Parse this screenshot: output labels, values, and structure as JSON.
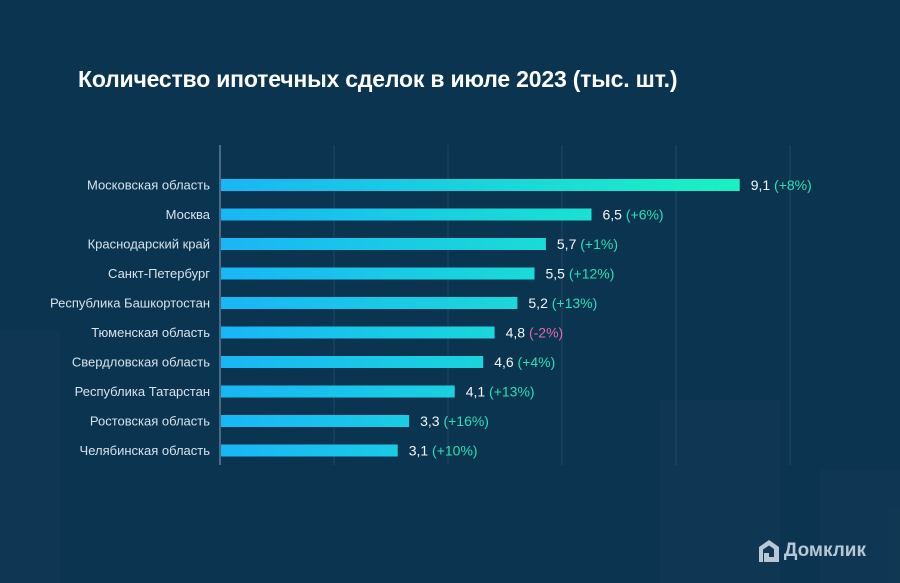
{
  "chart_data": {
    "type": "bar",
    "orientation": "horizontal",
    "title": "Количество ипотечных сделок в июле 2023 (тыс. шт.)",
    "xlabel": "",
    "ylabel": "",
    "xlim": [
      0,
      10
    ],
    "grid": true,
    "gridline_step": 2,
    "categories": [
      "Московская область",
      "Москва",
      "Краснодарский край",
      "Санкт-Петербург",
      "Республика Башкортостан",
      "Тюменская область",
      "Свердловская область",
      "Республика Татарстан",
      "Ростовская область",
      "Челябинская область"
    ],
    "values": [
      9.1,
      6.5,
      5.7,
      5.5,
      5.2,
      4.8,
      4.6,
      4.1,
      3.3,
      3.1
    ],
    "value_labels": [
      "9,1",
      "6,5",
      "5,7",
      "5,5",
      "5,2",
      "4,8",
      "4,6",
      "4,1",
      "3,3",
      "3,1"
    ],
    "changes": [
      "(+8%)",
      "(+6%)",
      "(+1%)",
      "(+12%)",
      "(+13%)",
      "(-2%)",
      "(+4%)",
      "(+13%)",
      "(+16%)",
      "(+10%)"
    ],
    "change_values_pct": [
      8,
      6,
      1,
      12,
      13,
      -2,
      4,
      13,
      16,
      10
    ],
    "colors": {
      "bar_start": "#19b6f6",
      "bar_end": "#1af2c2",
      "positive": "#27e0b4",
      "negative": "#e36aa8",
      "background": "#0b3450"
    }
  },
  "brand": {
    "name": "Домклик",
    "icon": "house-logo-icon"
  }
}
